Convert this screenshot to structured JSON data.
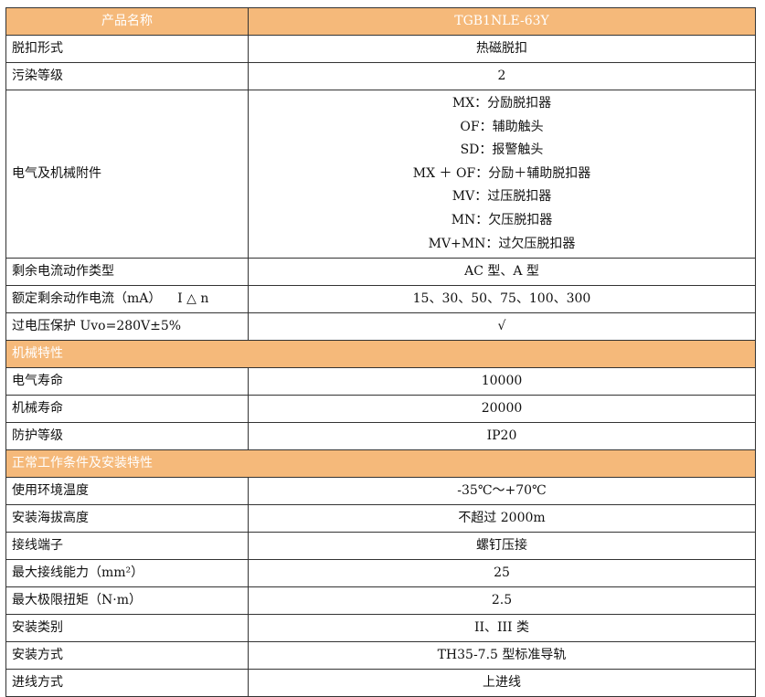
{
  "header": {
    "label": "产品名称",
    "value": "TGB1NLE-63Y"
  },
  "rows": [
    {
      "type": "row",
      "label": "脱扣形式",
      "value": "热磁脱扣"
    },
    {
      "type": "row",
      "label": "污染等级",
      "value": "2"
    },
    {
      "type": "multi",
      "label": "电气及机械附件",
      "values": [
        "MX：分励脱扣器",
        "OF：辅助触头",
        "SD：报警触头",
        "MX ＋ OF：分励＋辅助脱扣器",
        "MV：过压脱扣器",
        "MN：欠压脱扣器",
        "MV+MN：过欠压脱扣器"
      ]
    },
    {
      "type": "row",
      "label": "剩余电流动作类型",
      "value": "AC 型、A 型"
    },
    {
      "type": "row",
      "label": "额定剩余动作电流（mA）    I △ n",
      "value": "15、30、50、75、100、300"
    },
    {
      "type": "row",
      "label": "过电压保护 Uvo=280V±5%",
      "value": "√"
    },
    {
      "type": "section",
      "label": "机械特性"
    },
    {
      "type": "row",
      "label": "电气寿命",
      "value": "10000"
    },
    {
      "type": "row",
      "label": "机械寿命",
      "value": "20000"
    },
    {
      "type": "row",
      "label": "防护等级",
      "value": "IP20"
    },
    {
      "type": "section",
      "label": "正常工作条件及安装特性"
    },
    {
      "type": "row",
      "label": "使用环境温度",
      "value": "-35℃～+70℃"
    },
    {
      "type": "row",
      "label": "安装海拔高度",
      "value": "不超过 2000m"
    },
    {
      "type": "row",
      "label": "接线端子",
      "value": "螺钉压接"
    },
    {
      "type": "row",
      "label": "最大接线能力（mm²）",
      "value": "25"
    },
    {
      "type": "row",
      "label": "最大极限扭矩（N·m）",
      "value": "2.5"
    },
    {
      "type": "row",
      "label": "安装类别",
      "value": "II、III 类"
    },
    {
      "type": "row",
      "label": "安装方式",
      "value": "TH35-7.5 型标准导轨"
    },
    {
      "type": "row",
      "label": "进线方式",
      "value": "上进线"
    }
  ],
  "colors": {
    "header_bg": "#F5B97A",
    "header_text": "#FFFFFF"
  }
}
